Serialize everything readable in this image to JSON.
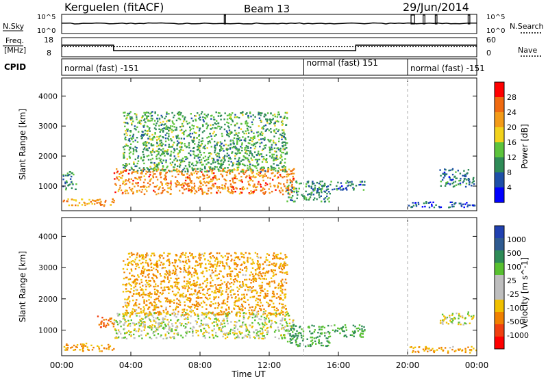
{
  "header": {
    "station": "Kerguelen (fitACF)",
    "beam": "Beam 13",
    "date": "29/Jun/2014"
  },
  "panels": {
    "nsky_label": "N.Sky",
    "nsearch_label": "N.Search",
    "freq_label_1": "Freq.",
    "freq_label_2": "[MHz]",
    "nave_label": "Nave",
    "cpid_label": "CPID",
    "nsky_ticks": [
      "10^5",
      "10^0"
    ],
    "nsearch_ticks": [
      "10^5",
      "10^0"
    ],
    "freq_ticks": [
      "18",
      "8"
    ],
    "nave_ticks": [
      "60",
      "0"
    ]
  },
  "cpid_segments": [
    {
      "label": "normal (fast) -151",
      "start": "00:00",
      "end": "14:00"
    },
    {
      "label": "normal (fast) 151",
      "start": "14:00",
      "end": "20:00"
    },
    {
      "label": "normal (fast) -151",
      "start": "20:00",
      "end": "24:00"
    }
  ],
  "colors": {
    "power_scale": [
      "#0000ff",
      "#1e4fa8",
      "#2e8b57",
      "#5cc33c",
      "#f2d21c",
      "#f39b18",
      "#f06a10",
      "#ff0000"
    ],
    "velocity_scale": [
      "#2040b0",
      "#2e5a90",
      "#2e8b57",
      "#58c030",
      "#bebebe",
      "#bebebe",
      "#f0c000",
      "#f08000",
      "#f04010",
      "#ff0000"
    ],
    "ground_scatter": "#bebebe"
  },
  "chart_data": [
    {
      "type": "heatmap",
      "title": "Power",
      "xlabel": "Time UT",
      "ylabel": "Slant Range [km]",
      "colorbar_label": "Power [dB]",
      "colorbar_ticks": [
        "28",
        "24",
        "20",
        "16",
        "12",
        "8",
        "4"
      ],
      "x_ticks": [
        "00:00",
        "04:00",
        "08:00",
        "12:00",
        "16:00",
        "20:00",
        "00:00"
      ],
      "y_ticks": [
        "4000",
        "3000",
        "2000",
        "1000"
      ],
      "xlim_hours": [
        0,
        24
      ],
      "ylim_km": [
        180,
        4600
      ],
      "regions": [
        {
          "t0": 0.0,
          "t1": 3.0,
          "r0": 350,
          "r1": 600,
          "power_db": 22
        },
        {
          "t0": 0.0,
          "t1": 0.8,
          "r0": 900,
          "r1": 1500,
          "power_db": 10
        },
        {
          "t0": 3.0,
          "t1": 13.4,
          "r0": 750,
          "r1": 1600,
          "power_db": 24
        },
        {
          "t0": 3.5,
          "t1": 13.0,
          "r0": 1500,
          "r1": 3500,
          "power_db": 12
        },
        {
          "t0": 13.0,
          "t1": 15.5,
          "r0": 500,
          "r1": 1200,
          "power_db": 10
        },
        {
          "t0": 15.5,
          "t1": 17.5,
          "r0": 900,
          "r1": 1200,
          "power_db": 8
        },
        {
          "t0": 20.0,
          "t1": 24.0,
          "r0": 300,
          "r1": 500,
          "power_db": 6
        },
        {
          "t0": 21.8,
          "t1": 23.8,
          "r0": 1000,
          "r1": 1600,
          "power_db": 8
        }
      ]
    },
    {
      "type": "heatmap",
      "title": "Velocity",
      "xlabel": "Time UT",
      "ylabel": "Slant Range [km]",
      "colorbar_label": "Velocity [m s^-1]",
      "colorbar_ticks": [
        "1000",
        "500",
        "100",
        "25",
        "-25",
        "-100",
        "-500",
        "-1000"
      ],
      "x_ticks": [
        "00:00",
        "04:00",
        "08:00",
        "12:00",
        "16:00",
        "20:00",
        "00:00"
      ],
      "y_ticks": [
        "4000",
        "3000",
        "2000",
        "1000"
      ],
      "xlim_hours": [
        0,
        24
      ],
      "ylim_km": [
        180,
        4600
      ],
      "regions": [
        {
          "t0": 0.0,
          "t1": 3.0,
          "r0": 350,
          "r1": 600,
          "velocity": -100
        },
        {
          "t0": 2.0,
          "t1": 3.0,
          "r0": 1100,
          "r1": 1500,
          "velocity": -500
        },
        {
          "t0": 3.0,
          "t1": 13.4,
          "r0": 750,
          "r1": 1600,
          "velocity": 0
        },
        {
          "t0": 3.5,
          "t1": 13.0,
          "r0": 1500,
          "r1": 3500,
          "velocity": -100
        },
        {
          "t0": 13.0,
          "t1": 15.5,
          "r0": 500,
          "r1": 1200,
          "velocity": 100
        },
        {
          "t0": 15.5,
          "t1": 17.5,
          "r0": 800,
          "r1": 1200,
          "velocity": 100
        },
        {
          "t0": 20.0,
          "t1": 24.0,
          "r0": 300,
          "r1": 500,
          "velocity": -100
        },
        {
          "t0": 21.8,
          "t1": 23.8,
          "r0": 1200,
          "r1": 1600,
          "velocity": 0
        }
      ]
    }
  ]
}
